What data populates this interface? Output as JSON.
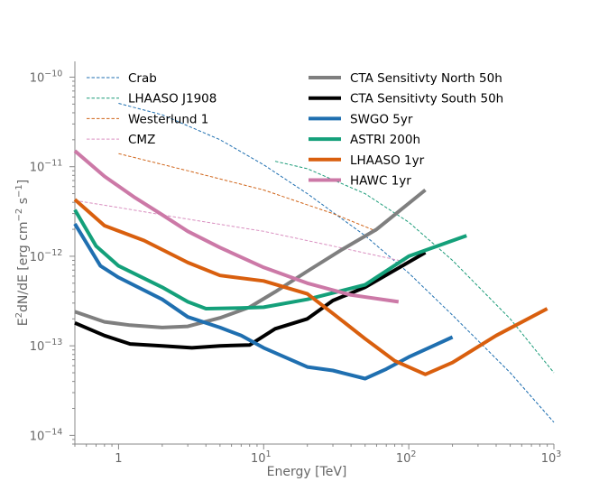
{
  "chart_data": {
    "type": "line",
    "xscale": "log",
    "yscale": "log",
    "xlabel": "Energy [TeV]",
    "ylabel_parts": [
      "E",
      "2",
      "dN/dE [erg cm",
      "−2",
      " s",
      "−1",
      "]"
    ],
    "xlim": [
      0.5,
      1000
    ],
    "ylim": [
      8e-15,
      1.5e-10
    ],
    "xticks": [
      {
        "value": 1,
        "base": "1",
        "exp": ""
      },
      {
        "value": 10,
        "base": "10",
        "exp": "1"
      },
      {
        "value": 100,
        "base": "10",
        "exp": "2"
      },
      {
        "value": 1000,
        "base": "10",
        "exp": "3"
      }
    ],
    "yticks": [
      {
        "value": 1e-14,
        "base": "10",
        "exp": "−14"
      },
      {
        "value": 1e-13,
        "base": "10",
        "exp": "−13"
      },
      {
        "value": 1e-12,
        "base": "10",
        "exp": "−12"
      },
      {
        "value": 1e-11,
        "base": "10",
        "exp": "−11"
      },
      {
        "value": 1e-10,
        "base": "10",
        "exp": "−10"
      }
    ],
    "series": [
      {
        "name": "Crab",
        "style": "dashed",
        "color": "#1f6fb0",
        "x": [
          1,
          2,
          5,
          10,
          20,
          50,
          100,
          200,
          500,
          1000
        ],
        "y": [
          5.1e-11,
          3.8e-11,
          2e-11,
          1.05e-11,
          5e-12,
          1.7e-12,
          6.5e-13,
          2.2e-13,
          5e-14,
          1.4e-14
        ]
      },
      {
        "name": "LHAASO J1908",
        "style": "dashed",
        "color": "#1a9b78",
        "x": [
          12,
          20,
          50,
          100,
          200,
          500,
          1000
        ],
        "y": [
          1.15e-11,
          9.5e-12,
          5e-12,
          2.4e-12,
          9e-13,
          2e-13,
          5e-14
        ]
      },
      {
        "name": "Westerlund 1",
        "style": "dashed",
        "color": "#d0651a",
        "x": [
          1,
          3,
          10,
          30,
          60
        ],
        "y": [
          1.4e-11,
          9e-12,
          5.5e-12,
          3e-12,
          1.9e-12
        ]
      },
      {
        "name": "CMZ",
        "style": "dashed",
        "color": "#d98fc0",
        "x": [
          0.5,
          1,
          3,
          10,
          30,
          100
        ],
        "y": [
          4.2e-12,
          3.5e-12,
          2.6e-12,
          1.9e-12,
          1.3e-12,
          8.5e-13
        ]
      },
      {
        "name": "CTA Sensitivty North 50h",
        "style": "solid",
        "color": "#7f7f7f",
        "x": [
          0.5,
          0.8,
          1.2,
          2,
          3,
          5,
          8,
          12,
          20,
          35,
          60,
          130
        ],
        "y": [
          2.4e-13,
          1.85e-13,
          1.7e-13,
          1.6e-13,
          1.65e-13,
          2.05e-13,
          2.7e-13,
          4e-13,
          6.8e-13,
          1.2e-12,
          2e-12,
          5.5e-12
        ]
      },
      {
        "name": "CTA Sensitivty South 50h",
        "style": "solid",
        "color": "#000000",
        "x": [
          0.5,
          0.8,
          1.2,
          2,
          3.2,
          5,
          8,
          12,
          20,
          30,
          50,
          130
        ],
        "y": [
          1.8e-13,
          1.3e-13,
          1.05e-13,
          1e-13,
          9.5e-14,
          1e-13,
          1.02e-13,
          1.55e-13,
          2e-13,
          3.2e-13,
          4.5e-13,
          1.1e-12
        ]
      },
      {
        "name": "SWGO 5yr",
        "style": "solid",
        "color": "#1f6fb0",
        "x": [
          0.5,
          0.75,
          1,
          2,
          3,
          5,
          7,
          10,
          20,
          30,
          50,
          70,
          100,
          200
        ],
        "y": [
          2.3e-12,
          7.8e-13,
          5.8e-13,
          3.3e-13,
          2.1e-13,
          1.6e-13,
          1.3e-13,
          9.5e-14,
          5.8e-14,
          5.3e-14,
          4.3e-14,
          5.5e-14,
          7.5e-14,
          1.25e-13
        ]
      },
      {
        "name": "ASTRI 200h",
        "style": "solid",
        "color": "#14a07a",
        "x": [
          0.5,
          0.7,
          1,
          2,
          3,
          4,
          7,
          10,
          20,
          50,
          100,
          250
        ],
        "y": [
          3.3e-12,
          1.3e-12,
          7.8e-13,
          4.5e-13,
          3.1e-13,
          2.6e-13,
          2.65e-13,
          2.7e-13,
          3.3e-13,
          4.8e-13,
          1e-12,
          1.7e-12
        ]
      },
      {
        "name": "LHAASO 1yr",
        "style": "solid",
        "color": "#d95f0e",
        "x": [
          0.5,
          0.8,
          1.5,
          3,
          5,
          10,
          20,
          30,
          50,
          80,
          130,
          200,
          400,
          900
        ],
        "y": [
          4.3e-12,
          2.2e-12,
          1.5e-12,
          8.5e-13,
          6.1e-13,
          5.3e-13,
          3.8e-13,
          2.3e-13,
          1.2e-13,
          6.8e-14,
          4.8e-14,
          6.5e-14,
          1.3e-13,
          2.6e-13
        ]
      },
      {
        "name": "HAWC 1yr",
        "style": "solid",
        "color": "#cc79a7",
        "x": [
          0.5,
          0.8,
          1.3,
          2,
          3,
          5,
          10,
          20,
          40,
          85
        ],
        "y": [
          1.5e-11,
          7.8e-12,
          4.5e-12,
          2.9e-12,
          1.9e-12,
          1.25e-12,
          7.5e-13,
          5e-13,
          3.7e-13,
          3.1e-13
        ]
      }
    ],
    "legend": [
      {
        "label": "Crab"
      },
      {
        "label": "LHAASO J1908"
      },
      {
        "label": "Westerlund 1"
      },
      {
        "label": "CMZ"
      },
      {
        "label": "CTA Sensitivty North 50h"
      },
      {
        "label": "CTA Sensitivty South 50h"
      },
      {
        "label": "SWGO 5yr"
      },
      {
        "label": "ASTRI 200h"
      },
      {
        "label": "LHAASO 1yr"
      },
      {
        "label": "HAWC 1yr"
      }
    ],
    "grid": false
  }
}
